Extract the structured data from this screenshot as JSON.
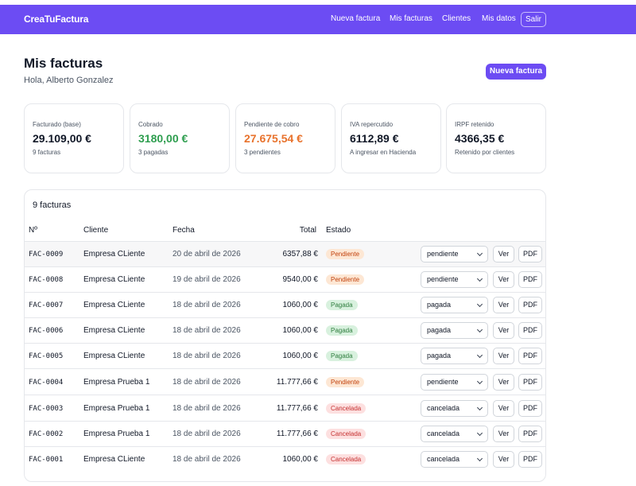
{
  "navbar": {
    "brand": "CreaTuFactura",
    "links": [
      "Nueva factura",
      "Mis facturas",
      "Clientes",
      "Mis datos"
    ],
    "logout": "Salir"
  },
  "header": {
    "title": "Mis facturas",
    "greeting": "Hola, Alberto Gonzalez",
    "new_invoice_button": "Nueva factura"
  },
  "stats": [
    {
      "label": "Facturado (base)",
      "value": "29.109,00 €",
      "sub": "9 facturas"
    },
    {
      "label": "Cobrado",
      "value": "3180,00 €",
      "sub": "3 pagadas"
    },
    {
      "label": "Pendiente de cobro",
      "value": "27.675,54 €",
      "sub": "3 pendientes"
    },
    {
      "label": "IVA repercutido",
      "value": "6112,89 €",
      "sub": "A ingresar en Hacienda"
    },
    {
      "label": "IRPF retenido",
      "value": "4366,35 €",
      "sub": "Retenido por clientes"
    }
  ],
  "table": {
    "title": "9 facturas",
    "headers": {
      "number": "Nº",
      "client": "Cliente",
      "date": "Fecha",
      "total": "Total",
      "status": "Estado"
    },
    "view_label": "Ver",
    "pdf_label": "PDF",
    "rows": [
      {
        "number": "FAC-0009",
        "client": "Empresa CLiente",
        "date": "20 de abril de 2026",
        "total": "6357,88 €",
        "status": "Pendiente",
        "select": "pendiente"
      },
      {
        "number": "FAC-0008",
        "client": "Empresa CLiente",
        "date": "19 de abril de 2026",
        "total": "9540,00 €",
        "status": "Pendiente",
        "select": "pendiente"
      },
      {
        "number": "FAC-0007",
        "client": "Empresa CLiente",
        "date": "18 de abril de 2026",
        "total": "1060,00 €",
        "status": "Pagada",
        "select": "pagada"
      },
      {
        "number": "FAC-0006",
        "client": "Empresa CLiente",
        "date": "18 de abril de 2026",
        "total": "1060,00 €",
        "status": "Pagada",
        "select": "pagada"
      },
      {
        "number": "FAC-0005",
        "client": "Empresa CLiente",
        "date": "18 de abril de 2026",
        "total": "1060,00 €",
        "status": "Pagada",
        "select": "pagada"
      },
      {
        "number": "FAC-0004",
        "client": "Empresa Prueba 1",
        "date": "18 de abril de 2026",
        "total": "11.777,66 €",
        "status": "Pendiente",
        "select": "pendiente"
      },
      {
        "number": "FAC-0003",
        "client": "Empresa Prueba 1",
        "date": "18 de abril de 2026",
        "total": "11.777,66 €",
        "status": "Cancelada",
        "select": "cancelada"
      },
      {
        "number": "FAC-0002",
        "client": "Empresa Prueba 1",
        "date": "18 de abril de 2026",
        "total": "11.777,66 €",
        "status": "Cancelada",
        "select": "cancelada"
      },
      {
        "number": "FAC-0001",
        "client": "Empresa CLiente",
        "date": "18 de abril de 2026",
        "total": "1060,00 €",
        "status": "Cancelada",
        "select": "cancelada"
      }
    ]
  },
  "colors": {
    "brand": "#6c4cf3",
    "paid": "#2e9e4f",
    "pending": "#e8722c",
    "cancelled": "#c53030"
  }
}
